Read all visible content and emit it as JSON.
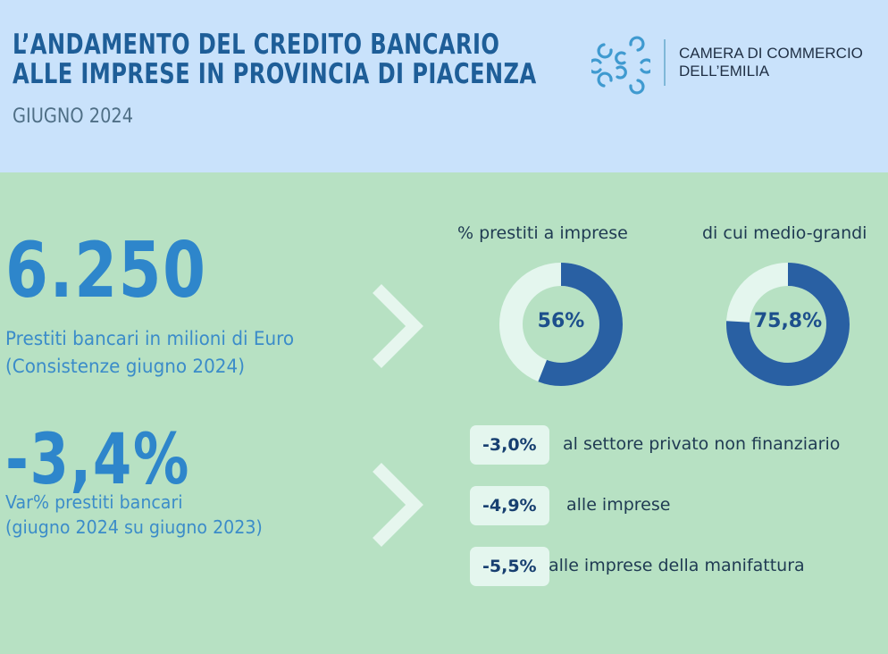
{
  "header": {
    "title_line1": "L’ANDAMENTO DEL CREDITO BANCARIO",
    "title_line2": "ALLE IMPRESE IN PROVINCIA DI PIACENZA",
    "subtitle": "GIUGNO 2024",
    "logo": {
      "icon": "camera-di-commercio-logo-icon",
      "line1": "CAMERA DI COMMERCIO",
      "line2": "DELL’EMILIA"
    }
  },
  "stats": [
    {
      "value": "6.250",
      "desc_line1": "Prestiti bancari in milioni di Euro",
      "desc_line2": "(Consistenze giugno 2024)"
    },
    {
      "value": "-3,4%",
      "desc_line1": "Var% prestiti bancari",
      "desc_line2": "(giugno 2024 su giugno 2023)"
    }
  ],
  "donuts": [
    {
      "label": "% prestiti a imprese",
      "value_text": "56%",
      "percent": 56
    },
    {
      "label": "di cui medio-grandi",
      "value_text": "75,8%",
      "percent": 75.8
    }
  ],
  "variations": [
    {
      "value": "-3,0%",
      "label": "al settore privato non finanziario"
    },
    {
      "value": "-4,9%",
      "label": "alle imprese"
    },
    {
      "value": "-5,5%",
      "label": "alle imprese della manifattura"
    }
  ],
  "colors": {
    "header_bg": "#c9e2fb",
    "body_bg": "#b7e1c3",
    "title": "#1e5e98",
    "big_number": "#2e86cb",
    "donut_fill": "#2960a3",
    "donut_track": "#e4f6ee",
    "chevron": "#e6f6ee"
  },
  "icons": {
    "chevron": "chevron-right-icon"
  }
}
